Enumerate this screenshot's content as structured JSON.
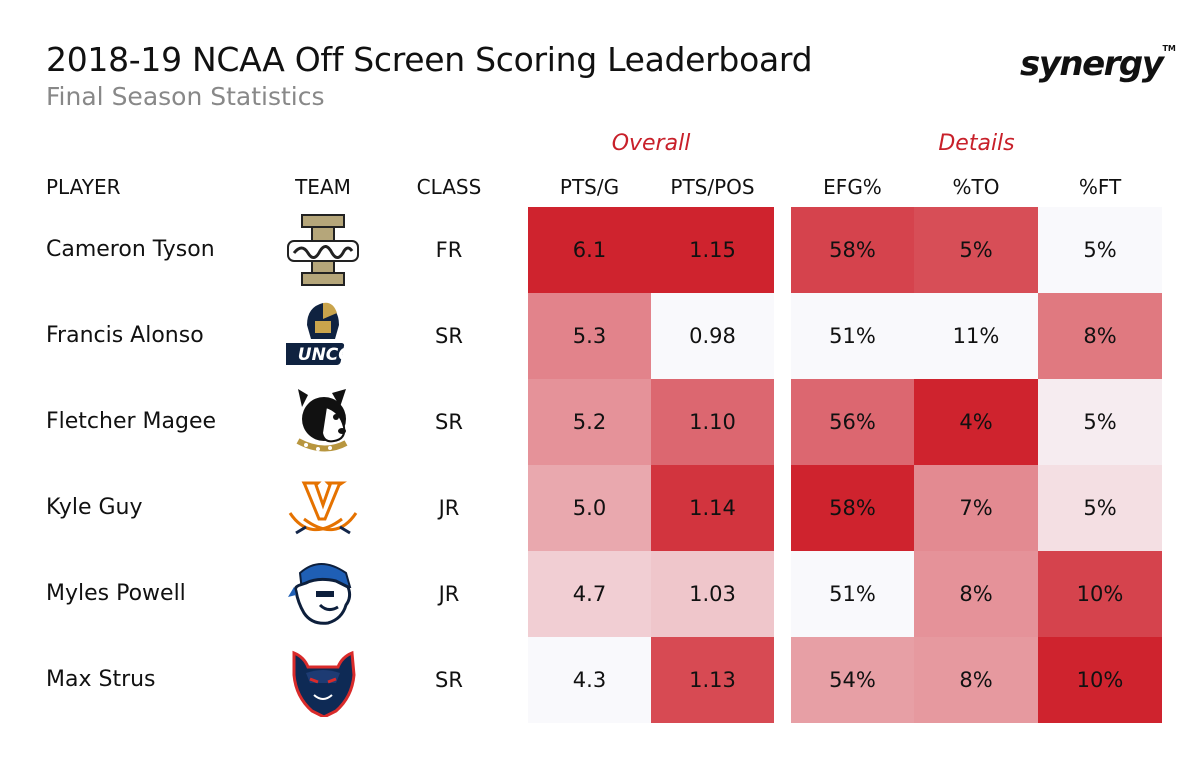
{
  "header": {
    "title": "2018-19 NCAA Off Screen Scoring Leaderboard",
    "subtitle": "Final Season Statistics",
    "brand": "synergy",
    "brand_tm": "TM"
  },
  "groups": {
    "overall": "Overall",
    "details": "Details"
  },
  "columns": {
    "player": "PLAYER",
    "team": "TEAM",
    "class": "CLASS",
    "pts_g": "PTS/G",
    "pts_pos": "PTS/POS",
    "efg": "EFG%",
    "to": "%TO",
    "ft": "%FT"
  },
  "chart_data": {
    "type": "table",
    "title": "2018-19 NCAA Off Screen Scoring Leaderboard",
    "subtitle": "Final Season Statistics",
    "column_groups": [
      {
        "name": "Overall",
        "columns": [
          "PTS/G",
          "PTS/POS"
        ]
      },
      {
        "name": "Details",
        "columns": [
          "EFG%",
          "%TO",
          "%FT"
        ]
      }
    ],
    "rows": [
      {
        "player": "Cameron Tyson",
        "team_logo": "idaho-vandals-logo",
        "class": "FR",
        "cells": [
          {
            "text": "6.1",
            "shade": 1.0
          },
          {
            "text": "1.15",
            "shade": 1.0
          },
          {
            "text": "58%",
            "shade": 0.85
          },
          {
            "text": "5%",
            "shade": 0.8
          },
          {
            "text": "5%",
            "shade": 0.0
          }
        ]
      },
      {
        "player": "Francis Alonso",
        "team_logo": "uncg-spartans-logo",
        "class": "SR",
        "cells": [
          {
            "text": "5.3",
            "shade": 0.55
          },
          {
            "text": "0.98",
            "shade": 0.0
          },
          {
            "text": "51%",
            "shade": 0.0
          },
          {
            "text": "11%",
            "shade": 0.0
          },
          {
            "text": "8%",
            "shade": 0.6
          }
        ]
      },
      {
        "player": "Fletcher Magee",
        "team_logo": "wofford-terriers-logo",
        "class": "SR",
        "cells": [
          {
            "text": "5.2",
            "shade": 0.48
          },
          {
            "text": "1.10",
            "shade": 0.68
          },
          {
            "text": "56%",
            "shade": 0.68
          },
          {
            "text": "4%",
            "shade": 1.0
          },
          {
            "text": "5%",
            "shade": 0.06
          }
        ]
      },
      {
        "player": "Kyle Guy",
        "team_logo": "virginia-cavaliers-logo",
        "class": "JR",
        "cells": [
          {
            "text": "5.0",
            "shade": 0.38
          },
          {
            "text": "1.14",
            "shade": 0.92
          },
          {
            "text": "58%",
            "shade": 1.0
          },
          {
            "text": "7%",
            "shade": 0.52
          },
          {
            "text": "5%",
            "shade": 0.12
          }
        ]
      },
      {
        "player": "Myles Powell",
        "team_logo": "seton-hall-pirates-logo",
        "class": "JR",
        "cells": [
          {
            "text": "4.7",
            "shade": 0.2
          },
          {
            "text": "1.03",
            "shade": 0.24
          },
          {
            "text": "51%",
            "shade": 0.0
          },
          {
            "text": "8%",
            "shade": 0.48
          },
          {
            "text": "10%",
            "shade": 0.85
          }
        ]
      },
      {
        "player": "Max Strus",
        "team_logo": "depaul-blue-demons-logo",
        "class": "SR",
        "cells": [
          {
            "text": "4.3",
            "shade": 0.0
          },
          {
            "text": "1.13",
            "shade": 0.82
          },
          {
            "text": "54%",
            "shade": 0.42
          },
          {
            "text": "8%",
            "shade": 0.45
          },
          {
            "text": "10%",
            "shade": 1.0
          }
        ]
      }
    ]
  },
  "colors": {
    "heat_high": "#cf2a35",
    "heat_low": "#f8f8fb",
    "group_label": "#c8202a",
    "subtitle": "#888888"
  }
}
